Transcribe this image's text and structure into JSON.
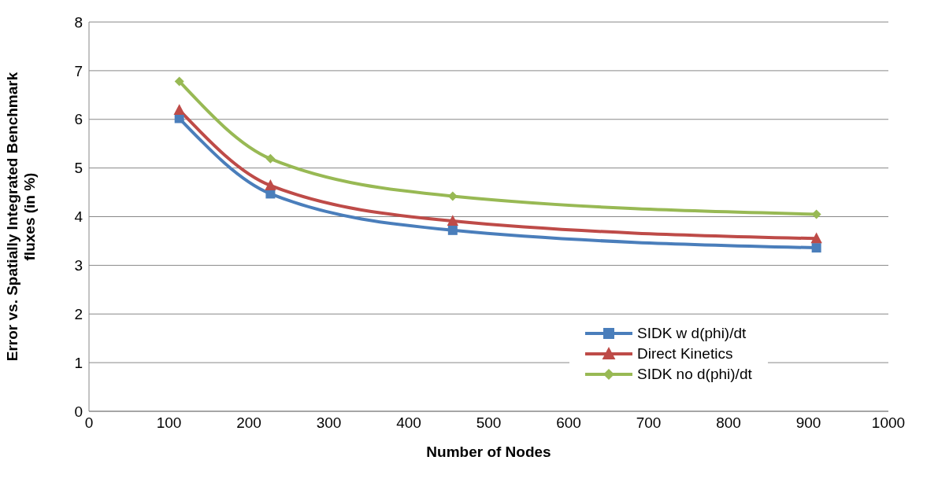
{
  "chart_data": {
    "type": "line",
    "xlabel": "Number of Nodes",
    "ylabel": "Error vs. Spatially Integrated Benchmark fluxes (in %)",
    "x": [
      113,
      227,
      455,
      910
    ],
    "series": [
      {
        "name": "SIDK w d(phi)/dt",
        "color": "#4a7ebb",
        "values": [
          6.02,
          4.47,
          3.72,
          3.36
        ],
        "marker": "square"
      },
      {
        "name": "Direct Kinetics",
        "color": "#be4b48",
        "values": [
          6.19,
          4.64,
          3.91,
          3.55
        ],
        "marker": "triangle"
      },
      {
        "name": "SIDK no d(phi)/dt",
        "color": "#98b954",
        "values": [
          6.78,
          5.19,
          4.42,
          4.05
        ],
        "marker": "diamond"
      }
    ],
    "xlim": [
      0,
      1000
    ],
    "xticks": [
      0,
      100,
      200,
      300,
      400,
      500,
      600,
      700,
      800,
      900,
      1000
    ],
    "ylim": [
      0,
      8
    ],
    "yticks": [
      0,
      1,
      2,
      3,
      4,
      5,
      6,
      7,
      8
    ],
    "grid": "y",
    "legend": "bottom right"
  }
}
